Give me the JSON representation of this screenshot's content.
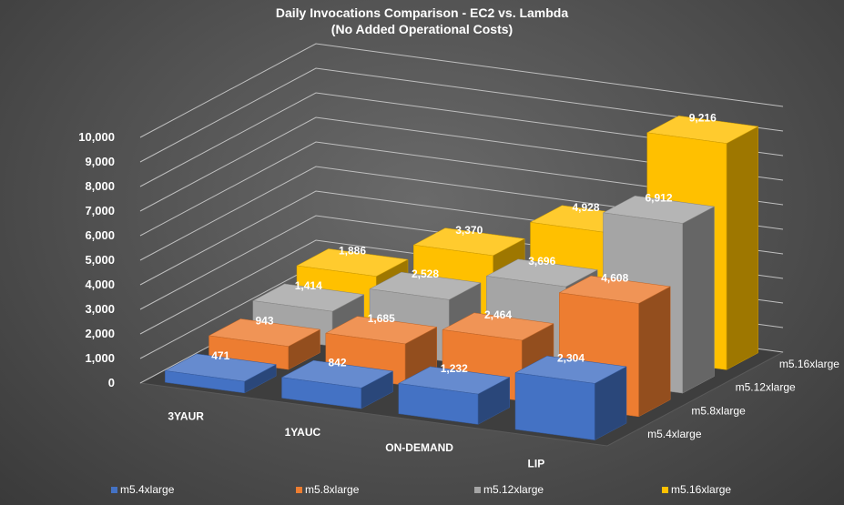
{
  "title": "Daily Invocations Comparison - EC2 vs. Lambda",
  "subtitle": "(No Added Operational Costs)",
  "colors": {
    "m5.4xlarge": "#4472c4",
    "m5.8xlarge": "#ed7d31",
    "m5.12xlarge": "#a5a5a5",
    "m5.16xlarge": "#ffc000",
    "grid": "#bfbfbf",
    "text": "#ffffff"
  },
  "chart_data": {
    "type": "bar",
    "subtype": "3d-column",
    "title": "Daily Invocations Comparison - EC2 vs. Lambda",
    "subtitle": "(No Added Operational Costs)",
    "categories": [
      "3YAUR",
      "1YAUC",
      "ON-DEMAND",
      "LIP"
    ],
    "series": [
      {
        "name": "m5.4xlarge",
        "values": [
          471,
          842,
          1232,
          2304
        ]
      },
      {
        "name": "m5.8xlarge",
        "values": [
          943,
          1685,
          2464,
          4608
        ]
      },
      {
        "name": "m5.12xlarge",
        "values": [
          1414,
          2528,
          3696,
          6912
        ]
      },
      {
        "name": "m5.16xlarge",
        "values": [
          1886,
          3370,
          4928,
          9216
        ]
      }
    ],
    "data_labels": [
      [
        "471",
        "842",
        "1,232",
        "2,304"
      ],
      [
        "943",
        "1,685",
        "2,464",
        "4,608"
      ],
      [
        "1,414",
        "2,528",
        "3,696",
        "6,912"
      ],
      [
        "1,886",
        "3,370",
        "4,928",
        "9,216"
      ]
    ],
    "yticks": [
      "0",
      "1,000",
      "2,000",
      "3,000",
      "4,000",
      "5,000",
      "6,000",
      "7,000",
      "8,000",
      "9,000",
      "10,000"
    ],
    "ylim": [
      0,
      10000
    ],
    "grid": true,
    "legend_position": "bottom",
    "legend": [
      "m5.4xlarge",
      "m5.8xlarge",
      "m5.12xlarge",
      "m5.16xlarge"
    ]
  }
}
